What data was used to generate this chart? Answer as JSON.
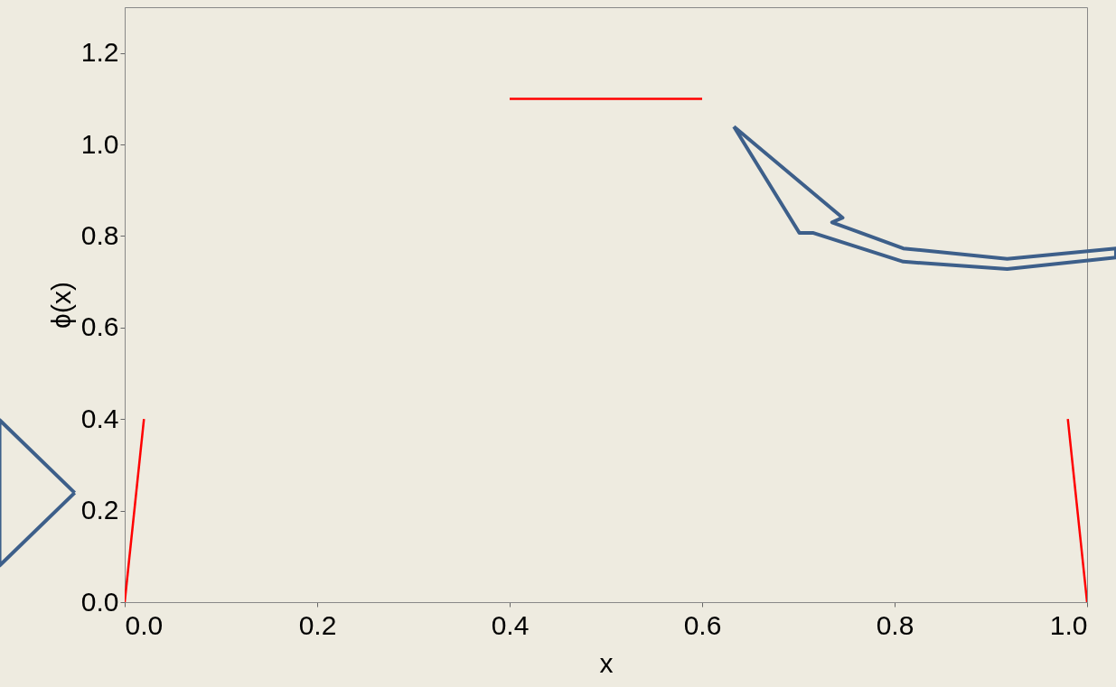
{
  "chart_data": {
    "type": "line",
    "xlabel": "x",
    "ylabel": "ϕ(x)",
    "series": [
      {
        "color": "#ff0000",
        "x": [
          0,
          0.02
        ],
        "values": [
          0,
          0.4
        ]
      },
      {
        "color": "#ff0000",
        "x": [
          0.4,
          0.6
        ],
        "values": [
          1.1,
          1.1
        ]
      },
      {
        "color": "#ff0000",
        "x": [
          0.98,
          1.0
        ],
        "values": [
          0.4,
          0
        ]
      }
    ],
    "xlim": [
      0,
      1
    ],
    "ylim": [
      0,
      1.3
    ],
    "xticks": [
      {
        "value": 0,
        "label": "0.0"
      },
      0.2,
      0.4,
      0.6,
      0.8,
      {
        "value": 1,
        "label": "1.0"
      }
    ],
    "yticks": [
      {
        "value": 0,
        "label": "0.0"
      },
      0.2,
      0.4,
      0.6,
      0.8,
      {
        "value": 1,
        "label": "1.0"
      },
      1.2
    ],
    "grid": false,
    "marker": "none",
    "line_style": "solid"
  }
}
